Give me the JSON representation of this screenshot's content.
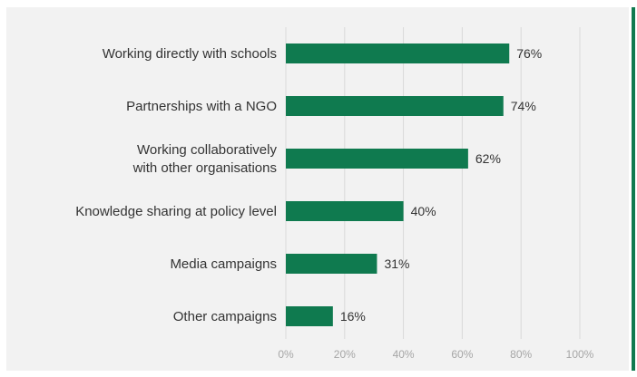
{
  "colors": {
    "bar": "#0f7a4f",
    "grid": "#d9d9d9",
    "panel": "#f2f2f2",
    "accent": "#0f7a4f"
  },
  "chart_data": {
    "type": "bar",
    "orientation": "horizontal",
    "categories": [
      [
        "Working directly with schools"
      ],
      [
        "Partnerships with a NGO"
      ],
      [
        "Working collaboratively",
        "with other organisations"
      ],
      [
        "Knowledge sharing at policy level"
      ],
      [
        "Media campaigns"
      ],
      [
        "Other campaigns"
      ]
    ],
    "values": [
      76,
      74,
      62,
      40,
      31,
      16
    ],
    "value_labels": [
      "76%",
      "74%",
      "62%",
      "40%",
      "31%",
      "16%"
    ],
    "xlim": [
      0,
      100
    ],
    "xticks": [
      0,
      20,
      40,
      60,
      80,
      100
    ],
    "xtick_labels": [
      "0%",
      "20%",
      "40%",
      "60%",
      "80%",
      "100%"
    ],
    "grid": true,
    "legend": false,
    "title": "",
    "xlabel": "",
    "ylabel": ""
  }
}
